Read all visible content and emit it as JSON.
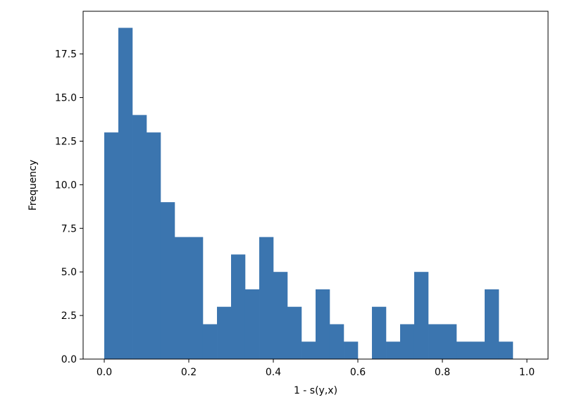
{
  "chart_data": {
    "type": "bar",
    "title": "",
    "xlabel": "1 - s(y,x)",
    "ylabel": "Frequency",
    "xlim": [
      -0.05,
      1.05
    ],
    "ylim": [
      0,
      19.95
    ],
    "grid": false,
    "bar_color": "#3b75af",
    "bin_edges": [
      0.0,
      0.0333,
      0.0667,
      0.1,
      0.1333,
      0.1667,
      0.2,
      0.2333,
      0.2667,
      0.3,
      0.3333,
      0.3667,
      0.4,
      0.4333,
      0.4667,
      0.5,
      0.5333,
      0.5667,
      0.6,
      0.6333,
      0.6667,
      0.7,
      0.7333,
      0.7667,
      0.8,
      0.8333,
      0.8667,
      0.9,
      0.9333,
      0.9667
    ],
    "values": [
      13,
      19,
      14,
      13,
      9,
      7,
      7,
      2,
      3,
      6,
      4,
      7,
      5,
      3,
      1,
      4,
      2,
      1,
      0,
      3,
      1,
      2,
      5,
      2,
      2,
      1,
      1,
      4,
      1
    ],
    "xticks": [
      0.0,
      0.2,
      0.4,
      0.6,
      0.8,
      1.0
    ],
    "xtick_labels": [
      "0.0",
      "0.2",
      "0.4",
      "0.6",
      "0.8",
      "1.0"
    ],
    "yticks": [
      0.0,
      2.5,
      5.0,
      7.5,
      10.0,
      12.5,
      15.0,
      17.5
    ],
    "ytick_labels": [
      "0.0",
      "2.5",
      "5.0",
      "7.5",
      "10.0",
      "12.5",
      "15.0",
      "17.5"
    ]
  }
}
